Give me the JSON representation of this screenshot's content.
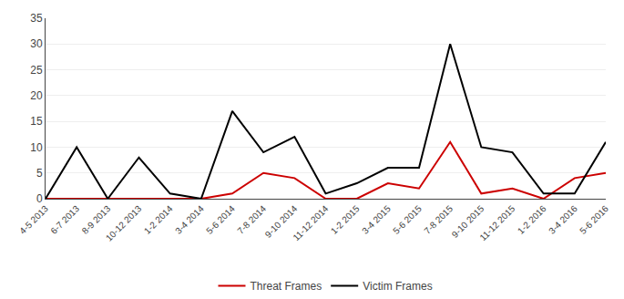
{
  "chart_data": {
    "type": "line",
    "categories": [
      "4-5 2013",
      "6-7 2013",
      "8-9 2013",
      "10-12 2013",
      "1-2 2014",
      "3-4 2014",
      "5-6 2014",
      "7-8 2014",
      "9-10 2014",
      "11-12 2014",
      "1-2 2015",
      "3-4 2015",
      "5-6 2015",
      "7-8 2015",
      "9-10 2015",
      "11-12 2015",
      "1-2 2016",
      "3-4 2016",
      "5-6 2016"
    ],
    "series": [
      {
        "name": "Threat Frames",
        "color": "#cc0000",
        "values": [
          0,
          0,
          0,
          0,
          0,
          0,
          1,
          5,
          4,
          0,
          0,
          3,
          2,
          11,
          1,
          2,
          0,
          4,
          5
        ]
      },
      {
        "name": "Victim Frames",
        "color": "#000000",
        "values": [
          0,
          10,
          0,
          8,
          1,
          0,
          17,
          9,
          12,
          1,
          3,
          6,
          6,
          30,
          10,
          9,
          1,
          1,
          11
        ]
      }
    ],
    "ylim": [
      0,
      35
    ],
    "yticks": [
      0,
      5,
      10,
      15,
      20,
      25,
      30,
      35
    ],
    "grid": true,
    "legend": "bottom"
  }
}
